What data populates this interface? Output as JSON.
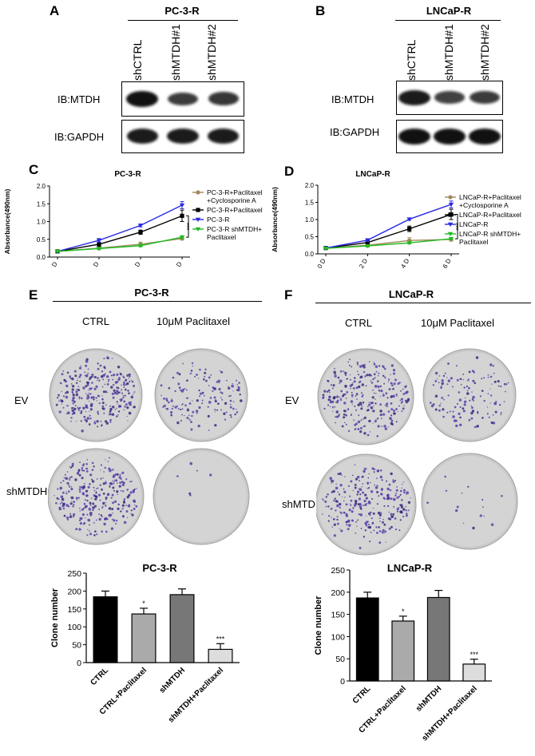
{
  "panels": {
    "A": {
      "letter": "A",
      "title": "PC-3-R",
      "lanes": [
        "shCTRL",
        "shMTDH#1",
        "shMTDH#2"
      ],
      "rows": [
        "IB:MTDH",
        "IB:GAPDH"
      ],
      "mtdh_band_intensity": [
        1.0,
        0.6,
        0.65
      ],
      "gapdh_band_intensity": [
        0.9,
        0.9,
        0.9
      ]
    },
    "B": {
      "letter": "B",
      "title": "LNCaP-R",
      "lanes": [
        "shCTRL",
        "shMTDH#1",
        "shMTDH#2"
      ],
      "rows": [
        "IB:MTDH",
        "IB:GAPDH"
      ],
      "mtdh_band_intensity": [
        0.9,
        0.55,
        0.6
      ],
      "gapdh_band_intensity": [
        1.0,
        1.0,
        1.0
      ]
    },
    "E": {
      "letter": "E",
      "title": "PC-3-R",
      "columns": [
        "CTRL",
        "10μM Paclitaxel"
      ],
      "rows": [
        "EV",
        "shMTDH"
      ],
      "colony_density": [
        [
          0.9,
          0.45
        ],
        [
          0.95,
          0.02
        ]
      ]
    },
    "F": {
      "letter": "F",
      "title": "LNCaP-R",
      "columns": [
        "CTRL",
        "10μM Paclitaxel"
      ],
      "rows": [
        "EV",
        "shMTDH"
      ],
      "colony_density": [
        [
          0.9,
          0.4
        ],
        [
          0.85,
          0.05
        ]
      ]
    }
  },
  "chart_data": [
    {
      "id": "C",
      "letter": "C",
      "type": "line",
      "title": "PC-3-R",
      "ylabel": "Absorbance(490nm)",
      "xlabel": "",
      "x": [
        "0 D",
        "2 D",
        "4 D",
        "6 D"
      ],
      "ylim": [
        0,
        2.0
      ],
      "yticks": [
        "0.0",
        "0.5",
        "1.0",
        "1.5",
        "2.0"
      ],
      "significance": "***",
      "series": [
        {
          "name": "PC-3-R+Paclitaxel +Cyclosporine A",
          "legend_lines": [
            "PC-3-R+Paclitaxel",
            "+Cyclosporine A"
          ],
          "color": "#a08a5a",
          "marker": "circle",
          "values": [
            0.16,
            0.25,
            0.36,
            0.52
          ],
          "errors": [
            0.02,
            0.04,
            0.06,
            0.04
          ]
        },
        {
          "name": "PC-3-R+Paclitaxel",
          "legend_lines": [
            "PC-3-R+Paclitaxel"
          ],
          "color": "#000000",
          "marker": "square",
          "values": [
            0.16,
            0.36,
            0.7,
            1.16
          ],
          "errors": [
            0.02,
            0.06,
            0.06,
            0.16
          ]
        },
        {
          "name": "PC-3-R",
          "legend_lines": [
            "PC-3-R"
          ],
          "color": "#2a2ae0",
          "marker": "triangle-down",
          "values": [
            0.16,
            0.47,
            0.89,
            1.46
          ],
          "errors": [
            0.02,
            0.05,
            0.04,
            0.1
          ]
        },
        {
          "name": "PC-3-R shMTDH+ Paclitaxel",
          "legend_lines": [
            "PC-3-R shMTDH+",
            "Paclitaxel"
          ],
          "color": "#22bb22",
          "marker": "triangle-down",
          "values": [
            0.16,
            0.24,
            0.32,
            0.56
          ],
          "errors": [
            0.02,
            0.03,
            0.03,
            0.04
          ]
        }
      ]
    },
    {
      "id": "D",
      "letter": "D",
      "type": "line",
      "title": "LNCaP-R",
      "ylabel": "Absorbance(490nm)",
      "xlabel": "",
      "x": [
        "0 D",
        "2 D",
        "4 D",
        "6 D"
      ],
      "ylim": [
        0,
        2.0
      ],
      "yticks": [
        "0.0",
        "0.5",
        "1.0",
        "1.5",
        "2.0"
      ],
      "significance": "***",
      "series": [
        {
          "name": "LNCaP-R+Paclitaxel +Cyclosporine A",
          "legend_lines": [
            "LNCaP-R+Paclitaxel",
            "+Cyclosporine A"
          ],
          "color": "#a08a5a",
          "marker": "circle",
          "values": [
            0.17,
            0.25,
            0.39,
            0.42
          ],
          "errors": [
            0.02,
            0.04,
            0.08,
            0.05
          ]
        },
        {
          "name": "LNCaP-R+Paclitaxel",
          "legend_lines": [
            "LNCaP-R+Paclitaxel"
          ],
          "color": "#000000",
          "marker": "square",
          "values": [
            0.17,
            0.33,
            0.73,
            1.15
          ],
          "errors": [
            0.02,
            0.06,
            0.08,
            0.15
          ]
        },
        {
          "name": "LNCaP-R",
          "legend_lines": [
            "LNCaP-R"
          ],
          "color": "#2a2ae0",
          "marker": "triangle-down",
          "values": [
            0.17,
            0.4,
            1.01,
            1.44
          ],
          "errors": [
            0.02,
            0.04,
            0.03,
            0.1
          ]
        },
        {
          "name": "LNCaP-R shMTDH+ Paclitaxel",
          "legend_lines": [
            "LNCaP-R shMTDH+",
            "Paclitaxel"
          ],
          "color": "#22bb22",
          "marker": "triangle-down",
          "values": [
            0.16,
            0.23,
            0.32,
            0.44
          ],
          "errors": [
            0.02,
            0.03,
            0.03,
            0.03
          ]
        }
      ]
    },
    {
      "id": "E-bar",
      "type": "bar",
      "title": "PC-3-R",
      "ylabel": "Clone number",
      "categories": [
        "CTRL",
        "CTRL+Paclitaxel",
        "shMTDH",
        "shMTDH+Paclitaxel"
      ],
      "values": [
        184,
        136,
        190,
        37
      ],
      "errors": [
        16,
        16,
        16,
        16
      ],
      "annotations": [
        "",
        "*",
        "",
        "***"
      ],
      "colors": [
        "#000000",
        "#aaaaaa",
        "#777777",
        "#dddddd"
      ],
      "ylim": [
        0,
        250
      ],
      "yticks": [
        "0",
        "50",
        "100",
        "150",
        "200",
        "250"
      ]
    },
    {
      "id": "F-bar",
      "type": "bar",
      "title": "LNCaP-R",
      "ylabel": "Clone number",
      "categories": [
        "CTRL",
        "CTRL+Paclitaxel",
        "shMTDH",
        "shMTDH+Paclitaxel"
      ],
      "values": [
        187,
        135,
        188,
        38
      ],
      "errors": [
        13,
        11,
        16,
        11
      ],
      "annotations": [
        "",
        "*",
        "",
        "***"
      ],
      "colors": [
        "#000000",
        "#aaaaaa",
        "#777777",
        "#dddddd"
      ],
      "ylim": [
        0,
        250
      ],
      "yticks": [
        "0",
        "50",
        "100",
        "150",
        "200",
        "250"
      ]
    }
  ]
}
